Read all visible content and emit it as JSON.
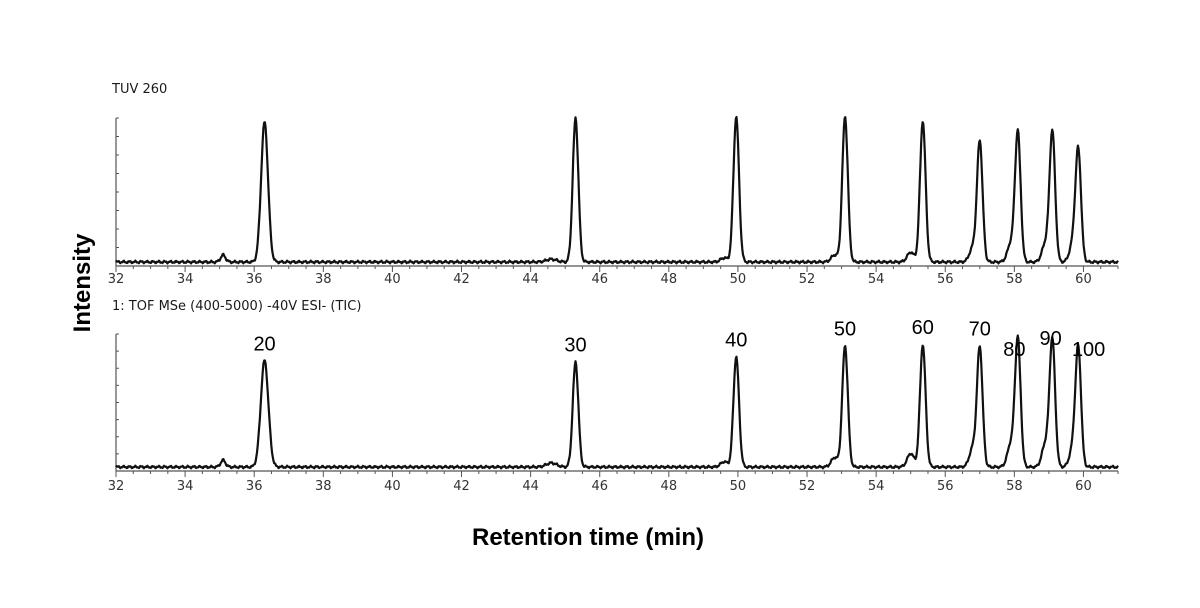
{
  "chart_data": {
    "type": "line",
    "xlabel": "Retention time (min)",
    "ylabel": "Intensity",
    "xlim": [
      32,
      61
    ],
    "x_ticks": [
      32,
      34,
      36,
      38,
      40,
      42,
      44,
      46,
      48,
      50,
      52,
      54,
      56,
      58,
      60
    ],
    "panels": [
      {
        "title": "TUV 260",
        "peaks": [
          {
            "x": 35.1,
            "h": 0.05,
            "w": 0.07
          },
          {
            "x": 36.3,
            "h": 1.0,
            "w": 0.1
          },
          {
            "x": 44.6,
            "h": 0.02,
            "w": 0.15
          },
          {
            "x": 45.3,
            "h": 1.03,
            "w": 0.08
          },
          {
            "x": 49.6,
            "h": 0.03,
            "w": 0.1
          },
          {
            "x": 49.95,
            "h": 1.04,
            "w": 0.08
          },
          {
            "x": 52.8,
            "h": 0.05,
            "w": 0.1
          },
          {
            "x": 53.1,
            "h": 1.04,
            "w": 0.08
          },
          {
            "x": 55.0,
            "h": 0.07,
            "w": 0.1
          },
          {
            "x": 55.35,
            "h": 1.01,
            "w": 0.08
          },
          {
            "x": 56.8,
            "h": 0.1,
            "w": 0.1
          },
          {
            "x": 57.0,
            "h": 0.86,
            "w": 0.08
          },
          {
            "x": 57.9,
            "h": 0.13,
            "w": 0.1
          },
          {
            "x": 58.1,
            "h": 0.93,
            "w": 0.08
          },
          {
            "x": 58.9,
            "h": 0.13,
            "w": 0.1
          },
          {
            "x": 59.1,
            "h": 0.93,
            "w": 0.08
          },
          {
            "x": 59.7,
            "h": 0.13,
            "w": 0.1
          },
          {
            "x": 59.85,
            "h": 0.78,
            "w": 0.08
          }
        ],
        "peak_labels": []
      },
      {
        "title": "1: TOF MSe (400-5000) -40V ESI- (TIC)",
        "peaks": [
          {
            "x": 35.1,
            "h": 0.05,
            "w": 0.07
          },
          {
            "x": 36.3,
            "h": 0.79,
            "w": 0.11
          },
          {
            "x": 44.6,
            "h": 0.03,
            "w": 0.15
          },
          {
            "x": 45.3,
            "h": 0.78,
            "w": 0.08
          },
          {
            "x": 49.6,
            "h": 0.04,
            "w": 0.1
          },
          {
            "x": 49.95,
            "h": 0.82,
            "w": 0.08
          },
          {
            "x": 52.8,
            "h": 0.07,
            "w": 0.1
          },
          {
            "x": 53.1,
            "h": 0.9,
            "w": 0.08
          },
          {
            "x": 55.0,
            "h": 0.1,
            "w": 0.1
          },
          {
            "x": 55.35,
            "h": 0.91,
            "w": 0.08
          },
          {
            "x": 56.8,
            "h": 0.14,
            "w": 0.1
          },
          {
            "x": 57.0,
            "h": 0.88,
            "w": 0.08
          },
          {
            "x": 57.9,
            "h": 0.17,
            "w": 0.1
          },
          {
            "x": 58.1,
            "h": 0.95,
            "w": 0.08
          },
          {
            "x": 58.9,
            "h": 0.17,
            "w": 0.1
          },
          {
            "x": 59.1,
            "h": 0.94,
            "w": 0.08
          },
          {
            "x": 59.7,
            "h": 0.14,
            "w": 0.1
          },
          {
            "x": 59.85,
            "h": 0.86,
            "w": 0.08
          }
        ],
        "peak_labels": [
          {
            "x": 36.3,
            "text": "20"
          },
          {
            "x": 45.3,
            "text": "30"
          },
          {
            "x": 49.95,
            "text": "40"
          },
          {
            "x": 53.1,
            "text": "50"
          },
          {
            "x": 55.35,
            "text": "60"
          },
          {
            "x": 57.0,
            "text": "70"
          },
          {
            "x": 58.0,
            "text": "80"
          },
          {
            "x": 59.05,
            "text": "90"
          },
          {
            "x": 60.15,
            "text": "100"
          }
        ]
      }
    ]
  }
}
